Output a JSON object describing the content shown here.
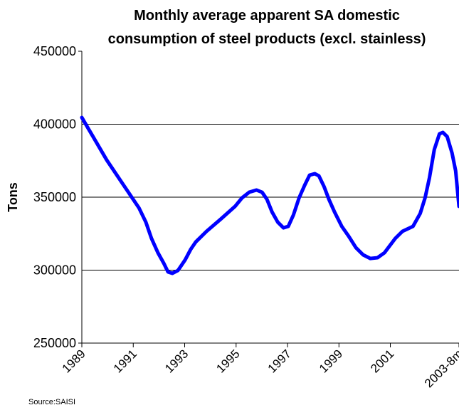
{
  "chart_data": {
    "type": "line",
    "title": [
      "Monthly average apparent SA domestic",
      "consumption of steel products (excl. stainless)"
    ],
    "y_label": "Tons",
    "source": "Source:SAISI",
    "x": [
      1989.0,
      1989.97,
      1990.66,
      1991.22,
      1991.49,
      1991.71,
      1991.96,
      1992.19,
      1992.35,
      1992.52,
      1992.74,
      1993.02,
      1993.24,
      1993.43,
      1993.85,
      1994.4,
      1994.96,
      1995.23,
      1995.51,
      1995.79,
      1996.01,
      1996.2,
      1996.4,
      1996.62,
      1996.84,
      1997.03,
      1997.23,
      1997.45,
      1997.67,
      1997.86,
      1998.06,
      1998.22,
      1998.42,
      1998.61,
      1998.83,
      1999.11,
      1999.38,
      1999.66,
      1999.94,
      2000.22,
      2000.5,
      2000.77,
      2001.19,
      2001.47,
      2001.88,
      2002.16,
      2002.35,
      2002.52,
      2002.71,
      2002.91,
      2003.04,
      2003.21,
      2003.4,
      2003.54,
      2003.67
    ],
    "series": [
      {
        "name": "Tons",
        "color": "#0000ff",
        "values": [
          404600,
          375400,
          357300,
          342700,
          332900,
          321700,
          311900,
          304600,
          298800,
          297800,
          299800,
          307100,
          314400,
          319300,
          326600,
          334900,
          343700,
          349500,
          353400,
          354900,
          353400,
          348500,
          339800,
          332900,
          329000,
          330000,
          337800,
          349500,
          358300,
          365100,
          366100,
          364600,
          357300,
          348500,
          339800,
          330000,
          323200,
          315400,
          310500,
          308000,
          308500,
          311900,
          321700,
          326600,
          330000,
          338800,
          349500,
          363200,
          382700,
          393400,
          394400,
          391500,
          380200,
          368000,
          343700
        ]
      }
    ],
    "xlim": [
      1989,
      2003.67
    ],
    "xticks": [
      1989,
      1991,
      1993,
      1995,
      1997,
      1999,
      2001,
      {
        "value": 2003.67,
        "label": "2003-8m"
      }
    ],
    "ylim": [
      250000,
      450000
    ],
    "yticks": [
      250000,
      300000,
      350000,
      400000,
      450000
    ],
    "grid": true
  }
}
